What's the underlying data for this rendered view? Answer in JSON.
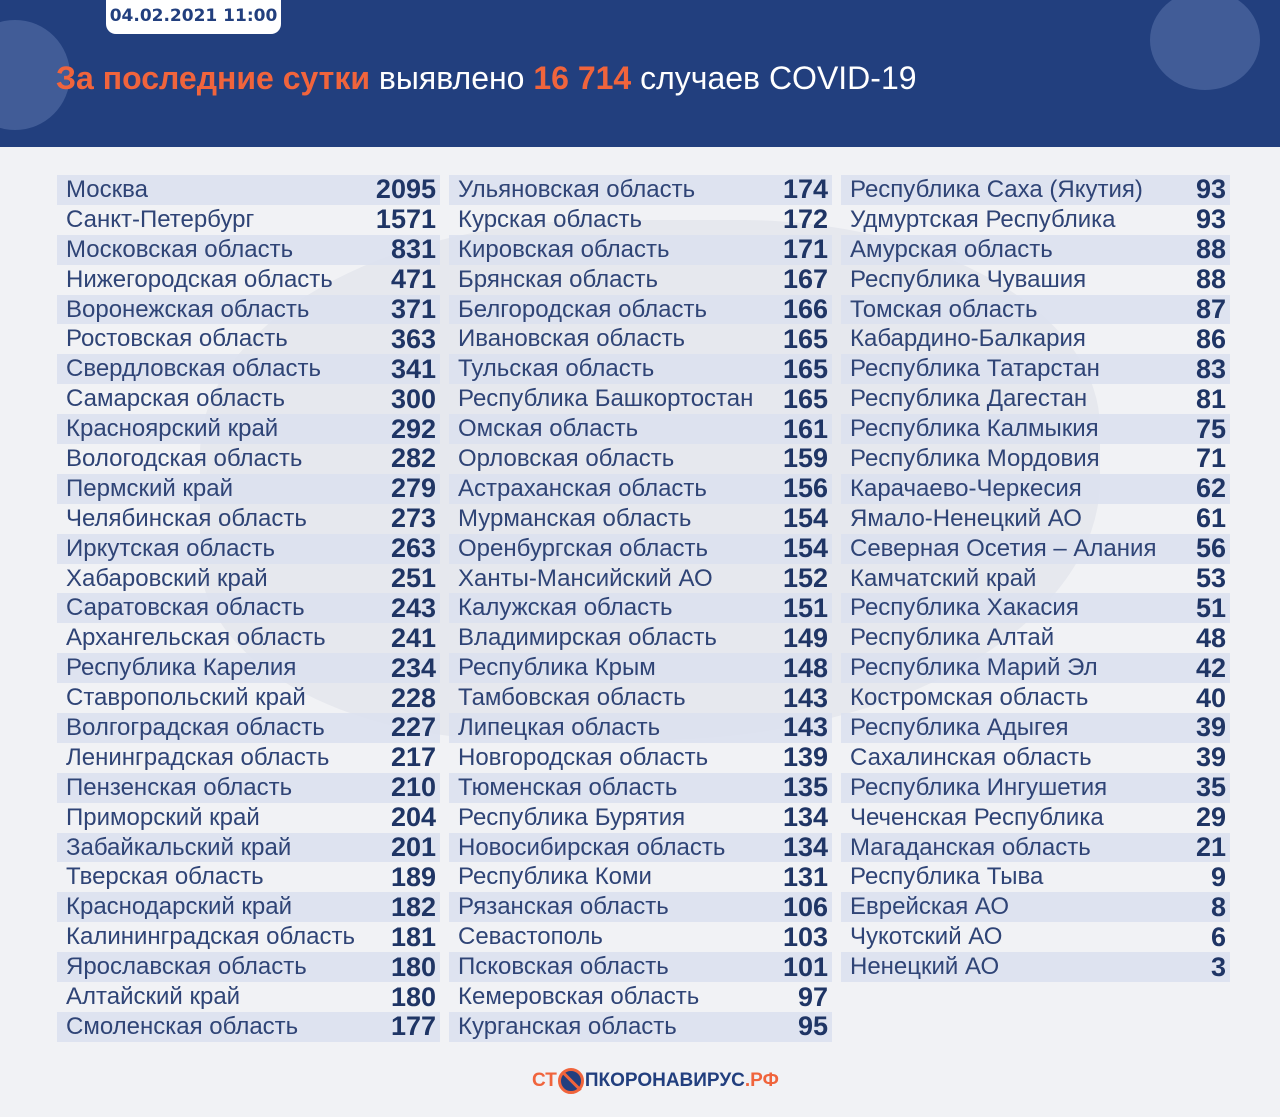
{
  "header": {
    "date": "04.02.2021 11:00",
    "title_accent": "За последние сутки",
    "title_mid": "выявлено",
    "total": "16 714",
    "title_end": "случаев COVID-19"
  },
  "columns": [
    [
      [
        "Москва",
        "2095"
      ],
      [
        "Санкт-Петербург",
        "1571"
      ],
      [
        "Московская область",
        "831"
      ],
      [
        "Нижегородская область",
        "471"
      ],
      [
        "Воронежская область",
        "371"
      ],
      [
        "Ростовская область",
        "363"
      ],
      [
        "Свердловская область",
        "341"
      ],
      [
        "Самарская область",
        "300"
      ],
      [
        "Красноярский край",
        "292"
      ],
      [
        "Вологодская область",
        "282"
      ],
      [
        "Пермский край",
        "279"
      ],
      [
        "Челябинская область",
        "273"
      ],
      [
        "Иркутская область",
        "263"
      ],
      [
        "Хабаровский край",
        "251"
      ],
      [
        "Саратовская область",
        "243"
      ],
      [
        "Архангельская область",
        "241"
      ],
      [
        "Республика Карелия",
        "234"
      ],
      [
        "Ставропольский край",
        "228"
      ],
      [
        "Волгоградская область",
        "227"
      ],
      [
        "Ленинградская область",
        "217"
      ],
      [
        "Пензенская область",
        "210"
      ],
      [
        "Приморский край",
        "204"
      ],
      [
        "Забайкальский край",
        "201"
      ],
      [
        "Тверская область",
        "189"
      ],
      [
        "Краснодарский край",
        "182"
      ],
      [
        "Калининградская область",
        "181"
      ],
      [
        "Ярославская область",
        "180"
      ],
      [
        "Алтайский край",
        "180"
      ],
      [
        "Смоленская область",
        "177"
      ]
    ],
    [
      [
        "Ульяновская область",
        "174"
      ],
      [
        "Курская область",
        "172"
      ],
      [
        "Кировская область",
        "171"
      ],
      [
        "Брянская область",
        "167"
      ],
      [
        "Белгородская область",
        "166"
      ],
      [
        "Ивановская область",
        "165"
      ],
      [
        "Тульская область",
        "165"
      ],
      [
        "Республика Башкортостан",
        "165"
      ],
      [
        "Омская область",
        "161"
      ],
      [
        "Орловская область",
        "159"
      ],
      [
        "Астраханская область",
        "156"
      ],
      [
        "Мурманская область",
        "154"
      ],
      [
        "Оренбургская область",
        "154"
      ],
      [
        "Ханты-Мансийский АО",
        "152"
      ],
      [
        "Калужская область",
        "151"
      ],
      [
        "Владимирская область",
        "149"
      ],
      [
        "Республика Крым",
        "148"
      ],
      [
        "Тамбовская область",
        "143"
      ],
      [
        "Липецкая область",
        "143"
      ],
      [
        "Новгородская область",
        "139"
      ],
      [
        "Тюменская область",
        "135"
      ],
      [
        "Республика Бурятия",
        "134"
      ],
      [
        "Новосибирская область",
        "134"
      ],
      [
        "Республика Коми",
        "131"
      ],
      [
        "Рязанская область",
        "106"
      ],
      [
        "Севастополь",
        "103"
      ],
      [
        "Псковская область",
        "101"
      ],
      [
        "Кемеровская область",
        "97"
      ],
      [
        "Курганская область",
        "95"
      ]
    ],
    [
      [
        "Республика Саха (Якутия)",
        "93"
      ],
      [
        "Удмуртская Республика",
        "93"
      ],
      [
        "Амурская область",
        "88"
      ],
      [
        "Республика Чувашия",
        "88"
      ],
      [
        "Томская область",
        "87"
      ],
      [
        "Кабардино-Балкария",
        "86"
      ],
      [
        "Республика Татарстан",
        "83"
      ],
      [
        "Республика Дагестан",
        "81"
      ],
      [
        "Республика Калмыкия",
        "75"
      ],
      [
        "Республика Мордовия",
        "71"
      ],
      [
        "Карачаево-Черкесия",
        "62"
      ],
      [
        "Ямало-Ненецкий АО",
        "61"
      ],
      [
        "Северная Осетия – Алания",
        "56"
      ],
      [
        "Камчатский край",
        "53"
      ],
      [
        "Республика Хакасия",
        "51"
      ],
      [
        "Республика Алтай",
        "48"
      ],
      [
        "Республика Марий Эл",
        "42"
      ],
      [
        "Костромская область",
        "40"
      ],
      [
        "Республика Адыгея",
        "39"
      ],
      [
        "Сахалинская область",
        "39"
      ],
      [
        "Республика Ингушетия",
        "35"
      ],
      [
        "Чеченская Республика",
        "29"
      ],
      [
        "Магаданская область",
        "21"
      ],
      [
        "Республика Тыва",
        "9"
      ],
      [
        "Еврейская АО",
        "8"
      ],
      [
        "Чукотский АО",
        "6"
      ],
      [
        "Ненецкий АО",
        "3"
      ]
    ]
  ],
  "footer": {
    "logo_part1": "СТ",
    "logo_part2": "ПКОРОНАВИРУС",
    "logo_part3": ".РФ"
  },
  "colors": {
    "header": "#223f7e",
    "accent": "#f0643c"
  }
}
